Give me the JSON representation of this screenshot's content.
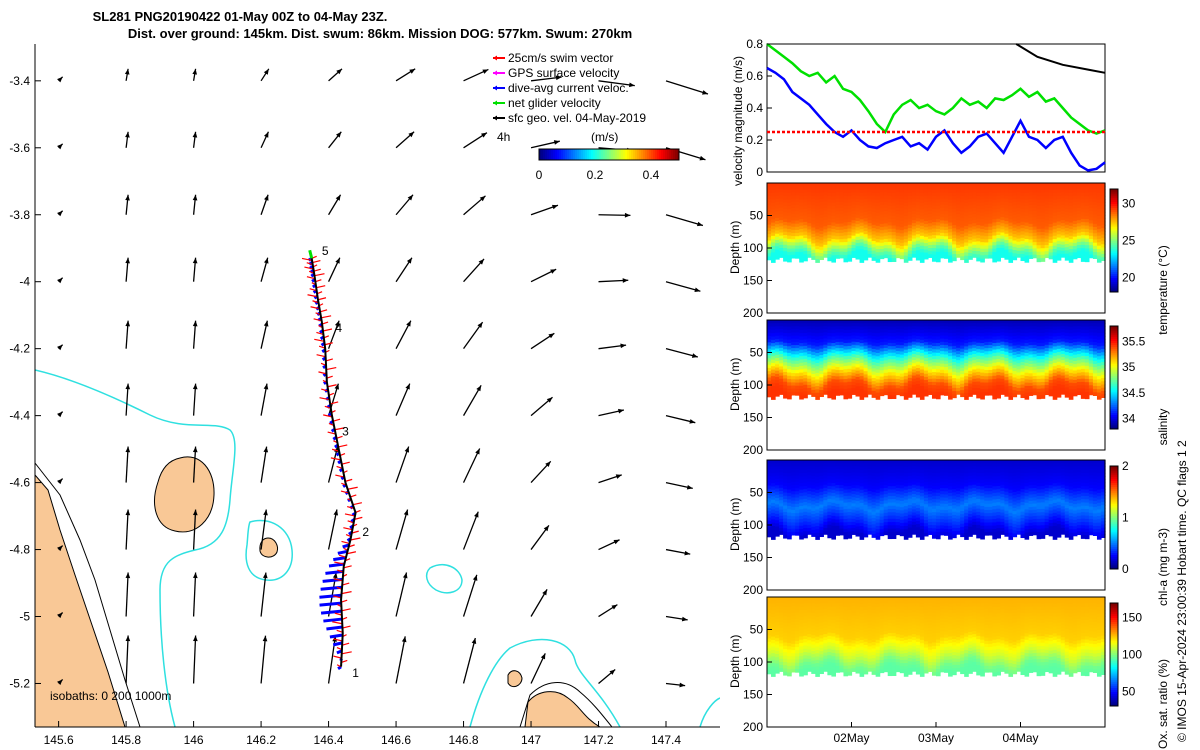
{
  "title": {
    "line1": "SL281 PNG20190422 01-May 00Z to 04-May 23Z.",
    "line2": "Dist. over ground: 145km. Dist. swum: 86km. Mission DOG: 577km. Swum: 270km"
  },
  "chart_data": [
    {
      "type": "scatter",
      "name": "glider-track-map",
      "xticks": [
        "145.6",
        "145.8",
        "146",
        "146.2",
        "146.4",
        "146.6",
        "146.8",
        "147",
        "147.2",
        "147.4"
      ],
      "yticks": [
        "-3.4",
        "-3.6",
        "-3.8",
        "-4",
        "-4.2",
        "-4.4",
        "-4.6",
        "-4.8",
        "-5",
        "-5.2"
      ],
      "xlim": [
        145.53,
        147.56
      ],
      "ylim": [
        -5.33,
        -3.29
      ],
      "legend": [
        {
          "label": "25cm/s swim vector",
          "color": "#ff0000"
        },
        {
          "label": "GPS surface velocity",
          "color": "#ff00ff"
        },
        {
          "label": "dive-avg current veloc.",
          "color": "#0000ff"
        },
        {
          "label": "net glider velocity",
          "color": "#00e000"
        },
        {
          "label": "sfc geo. vel. 04-May-2019",
          "color": "#000000"
        }
      ],
      "colorbar": {
        "label": "(m/s)",
        "ticks": [
          "0",
          "0.2",
          "0.4"
        ],
        "range": [
          0,
          0.5
        ]
      },
      "scale_label": "4h",
      "isobaths_label": "isobaths: 0   200  1000m",
      "track": [
        [
          146.437,
          -5.15
        ],
        [
          146.442,
          -5.05
        ],
        [
          146.437,
          -4.95
        ],
        [
          146.445,
          -4.85
        ],
        [
          146.465,
          -4.77
        ],
        [
          146.48,
          -4.69
        ],
        [
          146.45,
          -4.6
        ],
        [
          146.43,
          -4.5
        ],
        [
          146.41,
          -4.4
        ],
        [
          146.395,
          -4.3
        ],
        [
          146.39,
          -4.2
        ],
        [
          146.38,
          -4.12
        ],
        [
          146.368,
          -4.05
        ],
        [
          146.358,
          -3.98
        ],
        [
          146.35,
          -3.93
        ]
      ],
      "day_markers": [
        {
          "label": "1",
          "lon": 146.47,
          "lat": -5.18
        },
        {
          "label": "2",
          "lon": 146.5,
          "lat": -4.76
        },
        {
          "label": "3",
          "lon": 146.44,
          "lat": -4.46
        },
        {
          "label": "4",
          "lon": 146.42,
          "lat": -4.15
        },
        {
          "label": "5",
          "lon": 146.38,
          "lat": -3.92
        }
      ]
    },
    {
      "type": "line",
      "name": "velocity-magnitude",
      "ylabel": "velocity magnitude (m/s)",
      "yticks": [
        "0",
        "0.2",
        "0.4",
        "0.6",
        "0.8"
      ],
      "ylim": [
        0,
        0.8
      ],
      "xlim": [
        0,
        4
      ],
      "series": [
        {
          "name": "net glider velocity",
          "color": "#00e000",
          "x": [
            0,
            0.1,
            0.2,
            0.3,
            0.4,
            0.5,
            0.6,
            0.7,
            0.8,
            0.9,
            1.0,
            1.1,
            1.2,
            1.3,
            1.4,
            1.5,
            1.6,
            1.7,
            1.8,
            1.9,
            2.0,
            2.1,
            2.2,
            2.3,
            2.4,
            2.5,
            2.6,
            2.7,
            2.8,
            2.9,
            3.0,
            3.1,
            3.2,
            3.3,
            3.4,
            3.5,
            3.6,
            3.7,
            3.8,
            3.9,
            4.0
          ],
          "values": [
            0.8,
            0.76,
            0.72,
            0.68,
            0.63,
            0.6,
            0.62,
            0.56,
            0.6,
            0.52,
            0.5,
            0.45,
            0.38,
            0.3,
            0.25,
            0.36,
            0.42,
            0.45,
            0.4,
            0.42,
            0.38,
            0.36,
            0.4,
            0.46,
            0.42,
            0.44,
            0.4,
            0.46,
            0.45,
            0.48,
            0.52,
            0.47,
            0.5,
            0.44,
            0.46,
            0.4,
            0.34,
            0.3,
            0.26,
            0.24,
            0.26
          ]
        },
        {
          "name": "dive-avg current veloc.",
          "color": "#0000ff",
          "x": [
            0,
            0.1,
            0.2,
            0.3,
            0.4,
            0.5,
            0.6,
            0.7,
            0.8,
            0.9,
            1.0,
            1.1,
            1.2,
            1.3,
            1.4,
            1.5,
            1.6,
            1.7,
            1.8,
            1.9,
            2.0,
            2.1,
            2.2,
            2.3,
            2.4,
            2.5,
            2.6,
            2.7,
            2.8,
            2.9,
            3.0,
            3.1,
            3.2,
            3.3,
            3.4,
            3.5,
            3.6,
            3.7,
            3.8,
            3.9,
            4.0
          ],
          "values": [
            0.65,
            0.62,
            0.58,
            0.5,
            0.46,
            0.42,
            0.36,
            0.3,
            0.25,
            0.22,
            0.26,
            0.2,
            0.16,
            0.15,
            0.18,
            0.2,
            0.22,
            0.16,
            0.18,
            0.14,
            0.22,
            0.26,
            0.18,
            0.12,
            0.16,
            0.22,
            0.24,
            0.18,
            0.12,
            0.22,
            0.32,
            0.22,
            0.2,
            0.15,
            0.2,
            0.22,
            0.12,
            0.04,
            0.01,
            0.02,
            0.06
          ]
        },
        {
          "name": "25cm/s swim vector",
          "color": "#ff0000",
          "x": [
            0,
            4
          ],
          "values": [
            0.25,
            0.25
          ]
        },
        {
          "name": "sfc geo. vel.",
          "color": "#000000",
          "x": [
            2.95,
            3.2,
            3.5,
            3.8,
            4.0
          ],
          "values": [
            0.8,
            0.72,
            0.67,
            0.64,
            0.62
          ]
        }
      ]
    },
    {
      "type": "heatmap",
      "name": "temperature-section",
      "ylabel": "Depth (m)",
      "yticks": [
        "50",
        "100",
        "150",
        "200"
      ],
      "ylim": [
        0,
        200
      ],
      "colorbar": {
        "label": "temperature (°C)",
        "ticks": [
          "20",
          "25",
          "30"
        ],
        "range": [
          18,
          32
        ]
      },
      "bands": [
        {
          "depth": 0,
          "value": 29.5
        },
        {
          "depth": 60,
          "value": 29
        },
        {
          "depth": 85,
          "value": 27.5
        },
        {
          "depth": 105,
          "value": 24.5
        },
        {
          "depth": 115,
          "value": 23.5
        }
      ],
      "max_depth": 118
    },
    {
      "type": "heatmap",
      "name": "salinity-section",
      "ylabel": "Depth (m)",
      "yticks": [
        "50",
        "100",
        "150",
        "200"
      ],
      "ylim": [
        0,
        200
      ],
      "colorbar": {
        "label": "salinity",
        "ticks": [
          "34",
          "34.5",
          "35",
          "35.5"
        ],
        "range": [
          33.8,
          35.8
        ]
      },
      "bands": [
        {
          "depth": 0,
          "value": 33.9
        },
        {
          "depth": 35,
          "value": 34.1
        },
        {
          "depth": 60,
          "value": 34.7
        },
        {
          "depth": 80,
          "value": 35.1
        },
        {
          "depth": 100,
          "value": 35.4
        },
        {
          "depth": 115,
          "value": 35.45
        }
      ],
      "max_depth": 118
    },
    {
      "type": "heatmap",
      "name": "chla-section",
      "ylabel": "Depth (m)",
      "yticks": [
        "50",
        "100",
        "150",
        "200"
      ],
      "ylim": [
        0,
        200
      ],
      "colorbar": {
        "label": "chl-a (mg m-3)",
        "ticks": [
          "0",
          "1",
          "2"
        ],
        "range": [
          0,
          2
        ]
      },
      "bands": [
        {
          "depth": 0,
          "value": 0.15
        },
        {
          "depth": 40,
          "value": 0.25
        },
        {
          "depth": 70,
          "value": 0.5
        },
        {
          "depth": 90,
          "value": 0.35
        },
        {
          "depth": 115,
          "value": 0.15
        }
      ],
      "max_depth": 118
    },
    {
      "type": "heatmap",
      "name": "oxygen-section",
      "ylabel": "Depth (m)",
      "yticks": [
        "50",
        "100",
        "150",
        "200"
      ],
      "ylim": [
        0,
        200
      ],
      "colorbar": {
        "label": "Ox. sat. ratio (%)",
        "ticks": [
          "50",
          "100",
          "150"
        ],
        "range": [
          30,
          170
        ]
      },
      "bands": [
        {
          "depth": 0,
          "value": 128
        },
        {
          "depth": 60,
          "value": 124
        },
        {
          "depth": 85,
          "value": 112
        },
        {
          "depth": 105,
          "value": 98
        },
        {
          "depth": 115,
          "value": 95
        }
      ],
      "max_depth": 118
    }
  ],
  "time_axis": {
    "ticks": [
      "02May",
      "03May",
      "04May"
    ],
    "positions": [
      1,
      2,
      3
    ]
  },
  "side_note": "© IMOS 15-Apr-2024 23:00:39 Hobart time. QC flags 1  2"
}
